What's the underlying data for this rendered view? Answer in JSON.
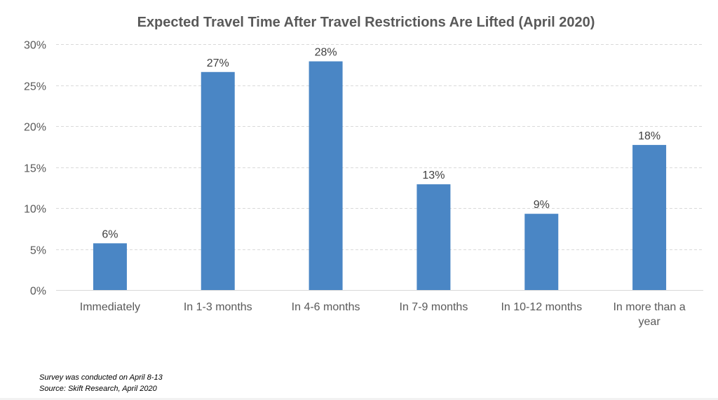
{
  "chart_data": {
    "type": "bar",
    "title": "Expected Travel Time After Travel Restrictions Are Lifted (April 2020)",
    "categories": [
      [
        "Immediately"
      ],
      [
        "In 1-3 months"
      ],
      [
        "In 4-6 months"
      ],
      [
        "In 7-9 months"
      ],
      [
        "In 10-12 months"
      ],
      [
        "In more than a",
        "year"
      ]
    ],
    "values": [
      5.7,
      26.6,
      27.9,
      12.9,
      9.3,
      17.7
    ],
    "data_labels": [
      "6%",
      "27%",
      "28%",
      "13%",
      "9%",
      "18%"
    ],
    "ylim": [
      0,
      30
    ],
    "yticks": [
      0,
      5,
      10,
      15,
      20,
      25,
      30
    ],
    "ytick_labels": [
      "0%",
      "5%",
      "10%",
      "15%",
      "20%",
      "25%",
      "30%"
    ],
    "xlabel": "",
    "ylabel": "",
    "grid": true,
    "legend": "none",
    "bar_color": "#4a86c5",
    "grid_color": "#d9d9d9"
  },
  "notes": {
    "line1": "Survey was conducted on April 8-13",
    "line2": "Source: Skift Research, April 2020"
  }
}
